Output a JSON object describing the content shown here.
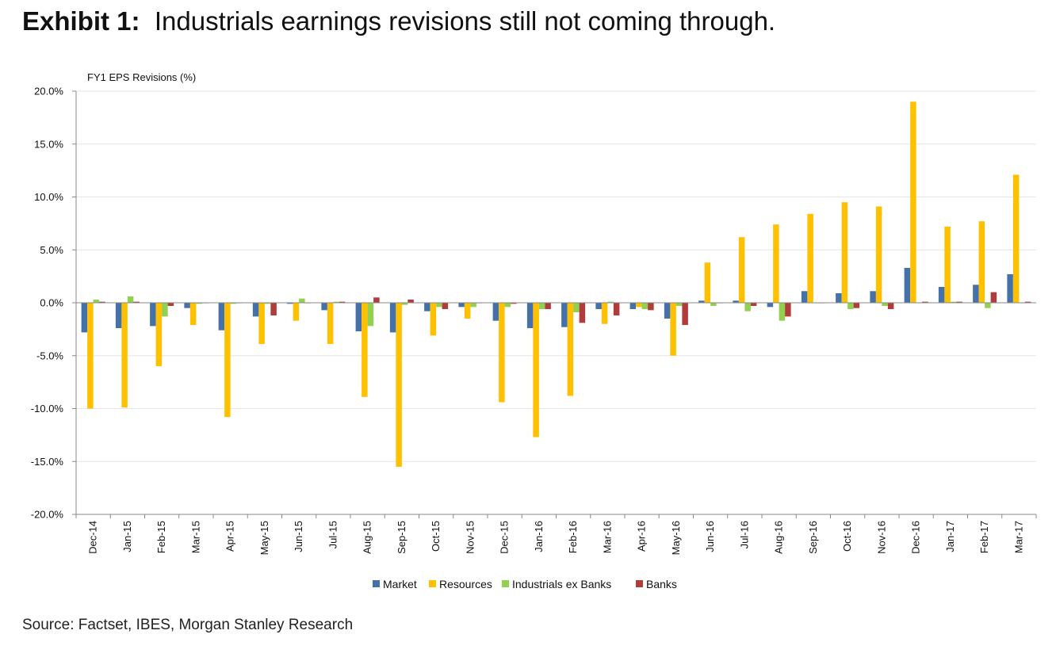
{
  "title": {
    "exhibit": "Exhibit 1:",
    "text": "Industrials earnings revisions still not coming through."
  },
  "source": "Source: Factset, IBES, Morgan Stanley Research",
  "chart_data": {
    "type": "bar",
    "ylabel": "FY1 EPS Revisions (%)",
    "ylim": [
      -20,
      20
    ],
    "yticks": [
      20,
      15,
      10,
      5,
      0,
      -5,
      -10,
      -15,
      -20
    ],
    "ytick_labels": [
      "20.0%",
      "15.0%",
      "10.0%",
      "5.0%",
      "0.0%",
      "-5.0%",
      "-10.0%",
      "-15.0%",
      "-20.0%"
    ],
    "grid": true,
    "legend_position": "bottom",
    "categories": [
      "Dec-14",
      "Jan-15",
      "Feb-15",
      "Mar-15",
      "Apr-15",
      "May-15",
      "Jun-15",
      "Jul-15",
      "Aug-15",
      "Sep-15",
      "Oct-15",
      "Nov-15",
      "Dec-15",
      "Jan-16",
      "Feb-16",
      "Mar-16",
      "Apr-16",
      "May-16",
      "Jun-16",
      "Jul-16",
      "Aug-16",
      "Sep-16",
      "Oct-16",
      "Nov-16",
      "Dec-16",
      "Jan-17",
      "Feb-17",
      "Mar-17"
    ],
    "series": [
      {
        "name": "Market",
        "color": "#4472a8",
        "values": [
          -2.8,
          -2.4,
          -2.2,
          -0.5,
          -2.6,
          -1.3,
          -0.1,
          -0.7,
          -2.7,
          -2.8,
          -0.8,
          -0.4,
          -1.7,
          -2.4,
          -2.3,
          -0.6,
          -0.6,
          -1.5,
          0.2,
          0.2,
          -0.4,
          1.1,
          0.9,
          1.1,
          3.3,
          1.5,
          1.7,
          2.7
        ]
      },
      {
        "name": "Resources",
        "color": "#ffc000",
        "values": [
          -10.0,
          -9.9,
          -6.0,
          -2.1,
          -10.8,
          -3.9,
          -1.7,
          -3.9,
          -8.9,
          -15.5,
          -3.1,
          -1.5,
          -9.4,
          -12.7,
          -8.8,
          -2.0,
          -0.4,
          -5.0,
          3.8,
          6.2,
          7.4,
          8.4,
          9.5,
          9.1,
          19.0,
          7.2,
          7.7,
          12.1
        ]
      },
      {
        "name": "Industrials ex Banks",
        "color": "#92d050",
        "values": [
          0.3,
          0.6,
          -1.3,
          -0.1,
          -0.1,
          -0.1,
          0.4,
          0.1,
          -2.2,
          -0.2,
          -0.4,
          -0.4,
          -0.4,
          -0.6,
          -0.9,
          0.1,
          -0.6,
          -0.3,
          -0.3,
          -0.8,
          -1.7,
          0.0,
          -0.6,
          -0.3,
          0.0,
          0.1,
          -0.5,
          0.0
        ]
      },
      {
        "name": "Banks",
        "color": "#b13c3c",
        "values": [
          0.1,
          0.1,
          -0.3,
          0.0,
          0.0,
          -1.2,
          0.0,
          0.1,
          0.5,
          0.3,
          -0.6,
          0.0,
          -0.1,
          -0.6,
          -1.9,
          -1.2,
          -0.7,
          -2.1,
          0.0,
          -0.3,
          -1.3,
          0.0,
          -0.5,
          -0.6,
          0.1,
          0.1,
          1.0,
          0.1
        ]
      }
    ]
  }
}
